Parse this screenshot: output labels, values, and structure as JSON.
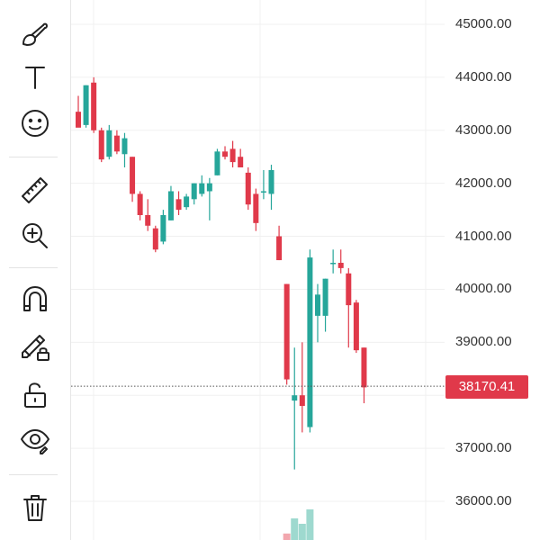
{
  "toolbar": {
    "tools": [
      {
        "icon": "brush-icon",
        "name": "brush"
      },
      {
        "icon": "text-icon",
        "name": "text"
      },
      {
        "icon": "emoji-icon",
        "name": "emoji"
      },
      {
        "icon": "ruler-icon",
        "name": "ruler"
      },
      {
        "icon": "zoom-in-icon",
        "name": "zoom-in"
      },
      {
        "icon": "magnet-icon",
        "name": "magnet"
      },
      {
        "icon": "lock-drawing-icon",
        "name": "lock-drawings"
      },
      {
        "icon": "unlock-icon",
        "name": "unlock"
      },
      {
        "icon": "eye-icon",
        "name": "hide-drawings"
      },
      {
        "icon": "trash-icon",
        "name": "delete"
      }
    ]
  },
  "chart_data": {
    "type": "candlestick",
    "y_axis": {
      "range": [
        35600,
        45400
      ],
      "ticks": [
        "45000.00",
        "44000.00",
        "43000.00",
        "42000.00",
        "41000.00",
        "40000.00",
        "39000.00",
        "38000.00",
        "37000.00",
        "36000.00"
      ]
    },
    "last_price": "38170.41",
    "colors": {
      "up": "#26a69a",
      "down": "#e0394a",
      "grid": "#f0f0f0",
      "volume_up": "#9ed9cf",
      "volume_down": "#f2a7ae"
    },
    "candles": [
      {
        "o": 43350,
        "h": 43650,
        "l": 43100,
        "c": 43050
      },
      {
        "o": 43100,
        "h": 43850,
        "l": 43050,
        "c": 43850
      },
      {
        "o": 43900,
        "h": 44000,
        "l": 42950,
        "c": 43000
      },
      {
        "o": 43000,
        "h": 43050,
        "l": 42400,
        "c": 42450
      },
      {
        "o": 42500,
        "h": 43100,
        "l": 42450,
        "c": 43000
      },
      {
        "o": 42900,
        "h": 43000,
        "l": 42550,
        "c": 42600
      },
      {
        "o": 42550,
        "h": 42950,
        "l": 42300,
        "c": 42850
      },
      {
        "o": 42500,
        "h": 42500,
        "l": 41650,
        "c": 41800
      },
      {
        "o": 41800,
        "h": 41850,
        "l": 41300,
        "c": 41400
      },
      {
        "o": 41400,
        "h": 41700,
        "l": 41100,
        "c": 41200
      },
      {
        "o": 41150,
        "h": 41200,
        "l": 40700,
        "c": 40750
      },
      {
        "o": 40900,
        "h": 41500,
        "l": 40850,
        "c": 41400
      },
      {
        "o": 41300,
        "h": 41950,
        "l": 41300,
        "c": 41850
      },
      {
        "o": 41700,
        "h": 41850,
        "l": 41400,
        "c": 41500
      },
      {
        "o": 41550,
        "h": 41800,
        "l": 41500,
        "c": 41750
      },
      {
        "o": 41700,
        "h": 42000,
        "l": 41600,
        "c": 42000
      },
      {
        "o": 41800,
        "h": 42150,
        "l": 41750,
        "c": 42000
      },
      {
        "o": 41850,
        "h": 42100,
        "l": 41300,
        "c": 42000
      },
      {
        "o": 42150,
        "h": 42650,
        "l": 42150,
        "c": 42600
      },
      {
        "o": 42600,
        "h": 42700,
        "l": 42450,
        "c": 42500
      },
      {
        "o": 42650,
        "h": 42800,
        "l": 42300,
        "c": 42400
      },
      {
        "o": 42500,
        "h": 42650,
        "l": 42300,
        "c": 42300
      },
      {
        "o": 42200,
        "h": 42300,
        "l": 41500,
        "c": 41600
      },
      {
        "o": 41800,
        "h": 41900,
        "l": 41100,
        "c": 41250
      },
      {
        "o": 41850,
        "h": 42250,
        "l": 41700,
        "c": 41850
      },
      {
        "o": 41800,
        "h": 42350,
        "l": 41500,
        "c": 42250
      },
      {
        "o": 41000,
        "h": 41200,
        "l": 40550,
        "c": 40550
      },
      {
        "o": 40100,
        "h": 40100,
        "l": 38200,
        "c": 38300
      },
      {
        "o": 37900,
        "h": 38900,
        "l": 36600,
        "c": 38000
      },
      {
        "o": 38000,
        "h": 39000,
        "l": 37300,
        "c": 37800
      },
      {
        "o": 37400,
        "h": 40750,
        "l": 37300,
        "c": 40600
      },
      {
        "o": 39500,
        "h": 40100,
        "l": 39000,
        "c": 39900
      },
      {
        "o": 39500,
        "h": 40200,
        "l": 39200,
        "c": 40200
      },
      {
        "o": 40500,
        "h": 40750,
        "l": 40300,
        "c": 40500
      },
      {
        "o": 40500,
        "h": 40750,
        "l": 40300,
        "c": 40400
      },
      {
        "o": 40300,
        "h": 40400,
        "l": 38900,
        "c": 39700
      },
      {
        "o": 39750,
        "h": 39800,
        "l": 38800,
        "c": 38850
      },
      {
        "o": 38900,
        "h": 38900,
        "l": 37850,
        "c": 38150
      }
    ],
    "volume": [
      {
        "index": 27,
        "dir": "down",
        "value": 0.18
      },
      {
        "index": 28,
        "dir": "up",
        "value": 0.6
      },
      {
        "index": 29,
        "dir": "up",
        "value": 0.45
      },
      {
        "index": 30,
        "dir": "up",
        "value": 0.85
      }
    ]
  }
}
